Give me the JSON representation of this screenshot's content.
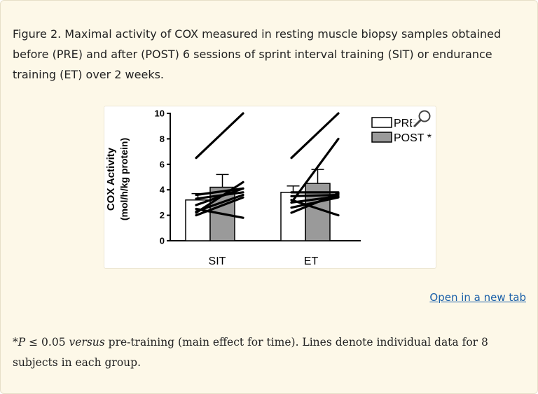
{
  "caption": "Figure 2. Maximal activity of COX measured in resting muscle biopsy samples obtained before (PRE) and after (POST) 6 sessions of sprint interval training (SIT) or endurance training (ET) over 2 weeks.",
  "open_link_label": "Open in a new tab",
  "footnote": {
    "star_p": "*P",
    "le_value": "≤ 0.05",
    "versus": "versus",
    "rest": "pre-training (main effect for time). Lines denote individual data for 8 subjects in each group."
  },
  "icons": {
    "magnifier": "magnifier-icon"
  },
  "colors": {
    "pre_fill": "#ffffff",
    "post_fill": "#9a9a9a",
    "link": "#1a5fa8"
  },
  "chart_data": {
    "type": "bar",
    "ylabel_line1": "COX Activity",
    "ylabel_line2": "(mol/h/kg protein)",
    "ylim": [
      0,
      10
    ],
    "yticks": [
      "0",
      "2",
      "4",
      "6",
      "8",
      "10"
    ],
    "categories": [
      "SIT",
      "ET"
    ],
    "series": [
      {
        "name": "PRE",
        "values": [
          3.2,
          3.8
        ],
        "errors": [
          0.5,
          0.5
        ]
      },
      {
        "name": "POST",
        "legend_label": "POST *",
        "values": [
          4.2,
          4.5
        ],
        "errors": [
          1.0,
          1.1
        ]
      }
    ],
    "individual_lines": {
      "SIT": [
        [
          6.5,
          10.0
        ],
        [
          2.2,
          4.6
        ],
        [
          2.8,
          4.1
        ],
        [
          3.6,
          4.1
        ],
        [
          3.3,
          3.8
        ],
        [
          2.3,
          3.6
        ],
        [
          2.0,
          3.4
        ],
        [
          2.5,
          1.8
        ]
      ],
      "ET": [
        [
          6.5,
          10.0
        ],
        [
          3.0,
          8.0
        ],
        [
          3.8,
          3.8
        ],
        [
          3.5,
          3.6
        ],
        [
          3.0,
          3.5
        ],
        [
          2.6,
          3.4
        ],
        [
          2.2,
          3.7
        ],
        [
          3.2,
          2.0
        ]
      ]
    },
    "legend_position": "top-right"
  }
}
